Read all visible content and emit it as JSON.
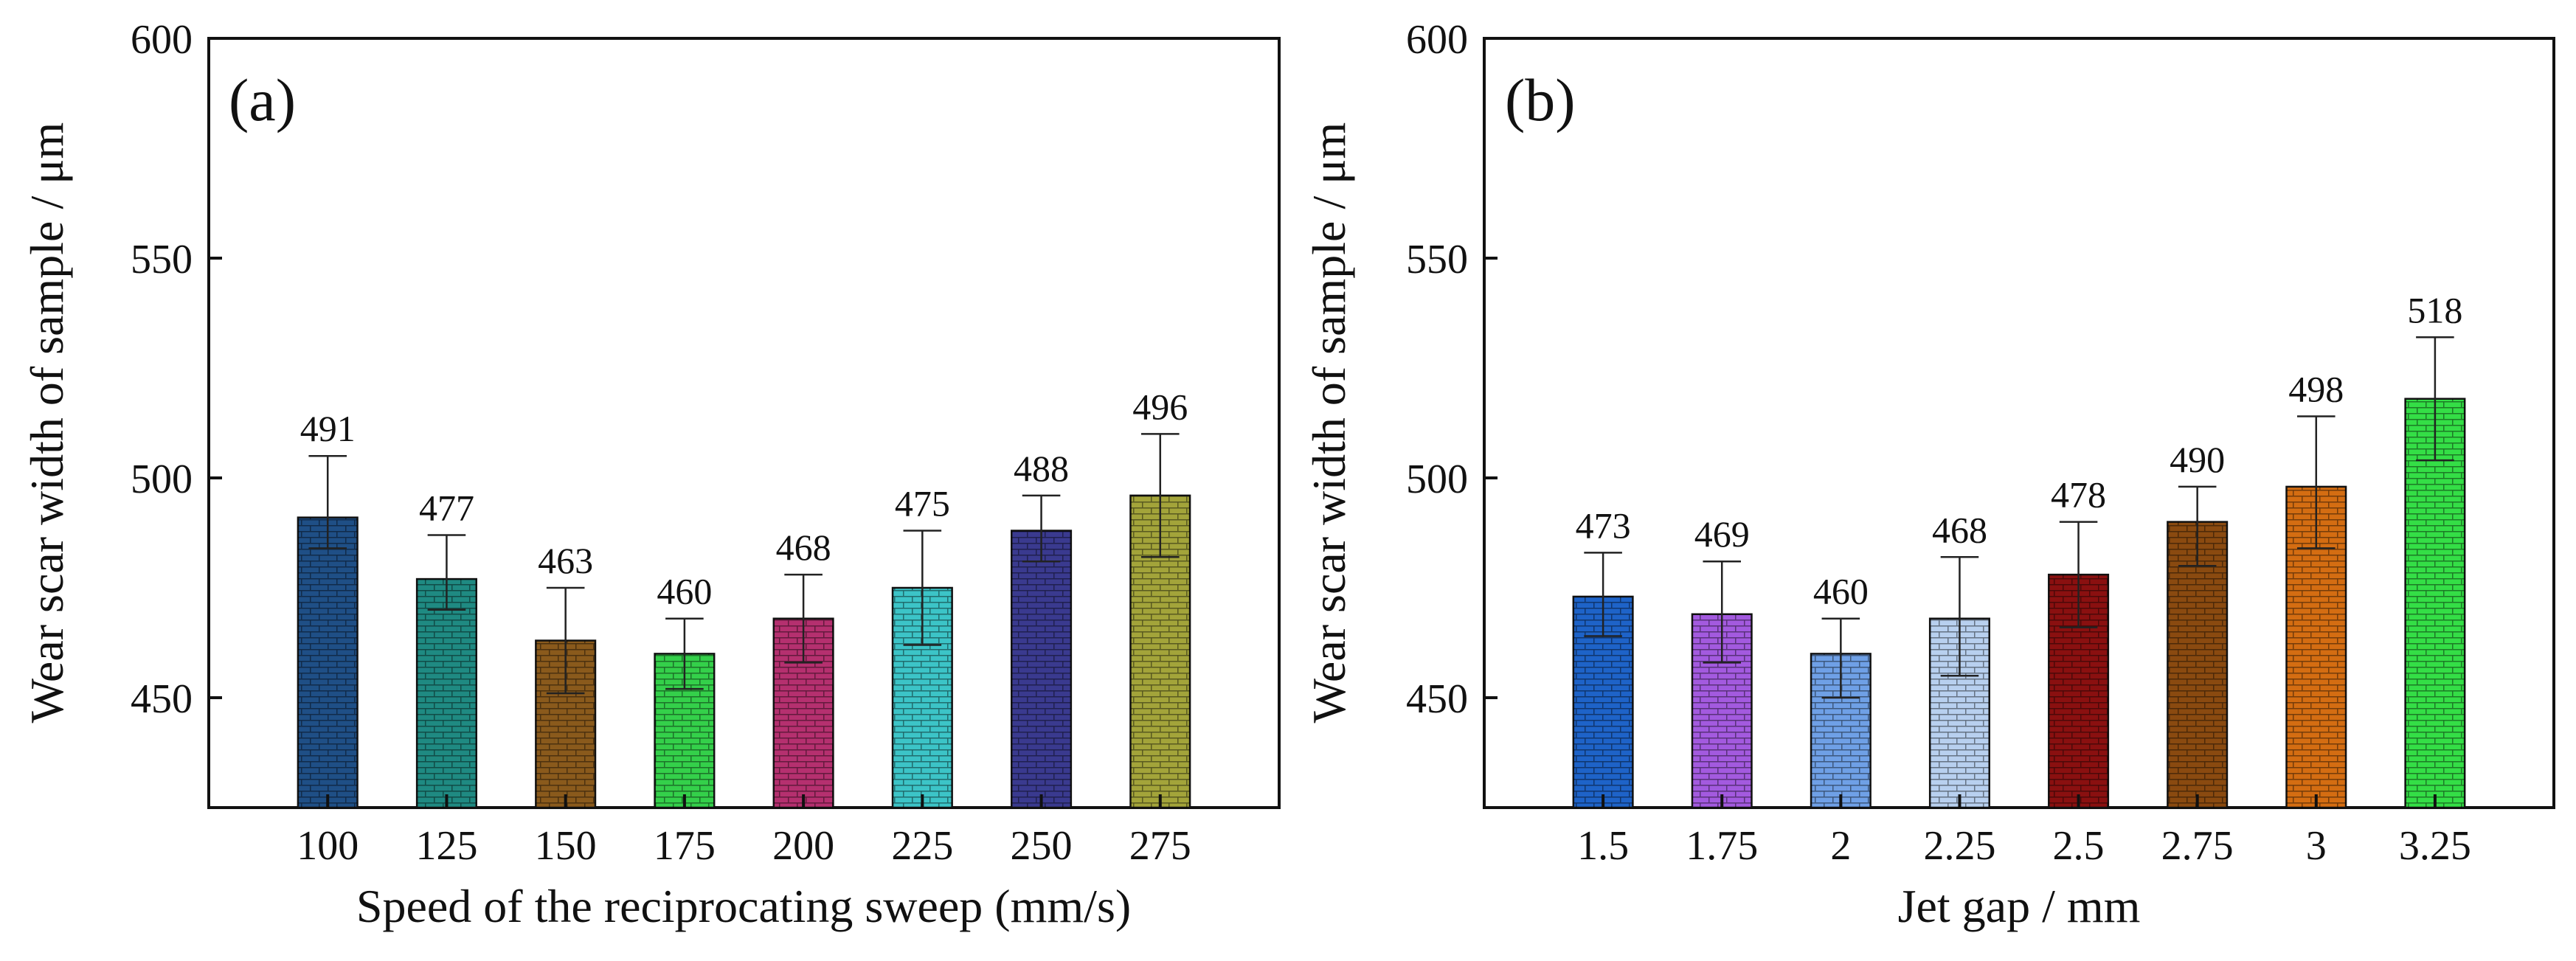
{
  "chart_data": [
    {
      "type": "bar",
      "panel_label": "(a)",
      "title": "",
      "xlabel": "Speed of the reciprocating sweep (mm/s)",
      "ylabel": "Wear scar width of sample / μm",
      "ylim": [
        425,
        600
      ],
      "yticks": [
        450,
        500,
        550,
        600
      ],
      "ytick_labels": [
        "450",
        "500",
        "550",
        "600"
      ],
      "categories": [
        "100",
        "125",
        "150",
        "175",
        "200",
        "225",
        "250",
        "275"
      ],
      "values": [
        491,
        477,
        463,
        460,
        468,
        475,
        488,
        496
      ],
      "value_labels": [
        "491",
        "477",
        "463",
        "460",
        "468",
        "475",
        "488",
        "496"
      ],
      "error_upper": [
        505,
        487,
        475,
        468,
        478,
        488,
        496,
        510
      ],
      "error_lower": [
        484,
        470,
        451,
        452,
        458,
        462,
        481,
        482
      ],
      "colors": [
        "#1f4f86",
        "#1f8a82",
        "#8a5a1c",
        "#34d04a",
        "#b5306f",
        "#3cc4c7",
        "#3a3a8f",
        "#a3a43a"
      ],
      "grid": false,
      "legend": "none"
    },
    {
      "type": "bar",
      "panel_label": "(b)",
      "title": "",
      "xlabel": "Jet gap / mm",
      "ylabel": "Wear scar width of sample / μm",
      "ylim": [
        425,
        600
      ],
      "yticks": [
        450,
        500,
        550,
        600
      ],
      "ytick_labels": [
        "450",
        "500",
        "550",
        "600"
      ],
      "categories": [
        "1.5",
        "1.75",
        "2",
        "2.25",
        "2.5",
        "2.75",
        "3",
        "3.25"
      ],
      "values": [
        473,
        469,
        460,
        468,
        478,
        490,
        498,
        518
      ],
      "value_labels": [
        "473",
        "469",
        "460",
        "468",
        "478",
        "490",
        "498",
        "518"
      ],
      "error_upper": [
        483,
        481,
        468,
        482,
        490,
        498,
        514,
        532
      ],
      "error_lower": [
        464,
        458,
        450,
        455,
        466,
        480,
        484,
        504
      ],
      "colors": [
        "#1e63c8",
        "#a35adf",
        "#6fa0e6",
        "#b8d0ef",
        "#8a1010",
        "#8a4a10",
        "#d46d12",
        "#34de46"
      ],
      "grid": false,
      "legend": "none"
    }
  ]
}
